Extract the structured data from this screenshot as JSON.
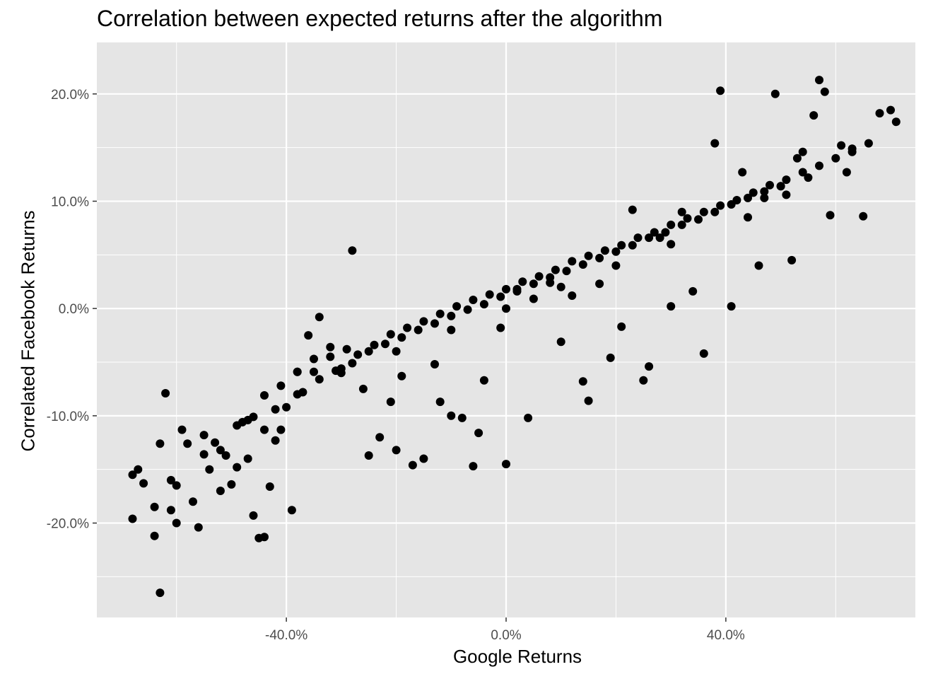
{
  "chart_data": {
    "type": "scatter",
    "title": "Correlation between expected returns after the algorithm",
    "xlabel": "Google Returns",
    "ylabel": "Correlated Facebook Returns",
    "xlim": [
      -0.745,
      0.745
    ],
    "ylim": [
      -0.288,
      0.248
    ],
    "x_ticks": [
      {
        "value": -0.4,
        "label": "-40.0%"
      },
      {
        "value": 0.0,
        "label": "0.0%"
      },
      {
        "value": 0.4,
        "label": "40.0%"
      }
    ],
    "y_ticks": [
      {
        "value": 0.2,
        "label": "20.0%"
      },
      {
        "value": 0.1,
        "label": "10.0%"
      },
      {
        "value": 0.0,
        "label": "0.0%"
      },
      {
        "value": -0.1,
        "label": "-10.0%"
      },
      {
        "value": -0.2,
        "label": "-20.0%"
      }
    ],
    "x_minor_breaks": [
      -0.6,
      -0.2,
      0.2,
      0.6
    ],
    "y_minor_breaks": [
      -0.25,
      -0.15,
      -0.05,
      0.05,
      0.15
    ],
    "grid": true,
    "point_color": "#000000",
    "panel_background": "#e5e5e5",
    "grid_color": "#ffffff",
    "series": [
      {
        "x": [
          -0.68,
          -0.68,
          -0.67,
          -0.66,
          -0.64,
          -0.63,
          -0.63,
          -0.62,
          -0.61,
          -0.6,
          -0.6,
          -0.59,
          -0.57,
          -0.56,
          -0.55,
          -0.54,
          -0.53,
          -0.52,
          -0.51,
          -0.49,
          -0.48,
          -0.47,
          -0.46,
          -0.45,
          -0.44,
          -0.43,
          -0.42,
          -0.41,
          -0.39,
          -0.38,
          -0.38,
          -0.36,
          -0.35,
          -0.34,
          -0.32,
          -0.29,
          -0.28,
          -0.26,
          -0.25,
          -0.23,
          -0.21,
          -0.2,
          -0.19,
          -0.17,
          -0.15,
          -0.13,
          -0.12,
          -0.1,
          -0.08,
          -0.06,
          -0.05,
          -0.04,
          -0.01,
          0.0,
          0.02,
          0.04,
          0.05,
          0.08,
          0.1,
          0.12,
          0.14,
          0.15,
          0.17,
          0.19,
          0.21,
          0.23,
          0.25,
          0.26,
          0.28,
          0.3,
          0.32,
          0.34,
          0.36,
          0.38,
          0.39,
          0.41,
          0.43,
          0.44,
          0.46,
          0.47,
          0.49,
          0.5,
          0.51,
          0.52,
          0.53,
          0.54,
          0.55,
          0.56,
          0.57,
          0.58,
          0.59,
          0.61,
          0.62,
          0.63,
          0.65,
          0.66,
          0.68,
          0.7,
          0.71,
          -0.64,
          -0.61,
          -0.58,
          -0.55,
          -0.52,
          -0.49,
          -0.46,
          -0.44,
          -0.41,
          -0.38,
          -0.35,
          -0.32,
          -0.3,
          -0.27,
          -0.24,
          -0.21,
          -0.18,
          -0.15,
          -0.12,
          -0.09,
          -0.06,
          -0.03,
          0.0,
          0.03,
          0.06,
          0.09,
          0.12,
          0.15,
          0.18,
          0.21,
          0.24,
          0.27,
          0.3,
          0.33,
          0.36,
          0.39,
          0.42,
          0.45,
          0.48,
          0.51,
          0.54,
          0.57,
          0.6,
          0.63,
          -0.5,
          -0.47,
          -0.44,
          -0.42,
          -0.4,
          -0.37,
          -0.34,
          -0.31,
          -0.28,
          -0.25,
          -0.22,
          -0.19,
          -0.16,
          -0.13,
          -0.1,
          -0.07,
          -0.04,
          -0.01,
          0.02,
          0.05,
          0.08,
          0.11,
          0.14,
          0.17,
          0.2,
          0.23,
          0.26,
          0.29,
          0.32,
          0.35,
          0.38,
          0.41,
          0.44,
          0.47,
          0.5,
          -0.3,
          -0.2,
          -0.1,
          0.0,
          0.1,
          0.2,
          0.3
        ],
        "y": [
          -0.155,
          -0.196,
          -0.15,
          -0.163,
          -0.185,
          -0.126,
          -0.265,
          -0.079,
          -0.188,
          -0.165,
          -0.2,
          -0.113,
          -0.18,
          -0.204,
          -0.118,
          -0.15,
          -0.125,
          -0.17,
          -0.137,
          -0.148,
          -0.106,
          -0.104,
          -0.193,
          -0.214,
          -0.213,
          -0.166,
          -0.123,
          -0.113,
          -0.188,
          -0.08,
          -0.059,
          -0.025,
          -0.047,
          -0.008,
          -0.036,
          -0.038,
          0.054,
          -0.075,
          -0.137,
          -0.12,
          -0.087,
          -0.132,
          -0.063,
          -0.146,
          -0.14,
          -0.052,
          -0.087,
          -0.1,
          -0.102,
          -0.147,
          -0.116,
          -0.067,
          -0.018,
          -0.145,
          0.018,
          -0.102,
          0.009,
          0.024,
          -0.031,
          0.012,
          -0.068,
          -0.086,
          0.023,
          -0.046,
          -0.017,
          0.092,
          -0.067,
          -0.054,
          0.066,
          0.002,
          0.09,
          0.016,
          -0.042,
          0.154,
          0.203,
          0.002,
          0.127,
          0.085,
          0.04,
          0.103,
          0.2,
          0.114,
          0.106,
          0.045,
          0.14,
          0.146,
          0.122,
          0.18,
          0.213,
          0.202,
          0.087,
          0.152,
          0.127,
          0.149,
          0.086,
          0.154,
          0.182,
          0.185,
          0.174,
          -0.212,
          -0.16,
          -0.126,
          -0.136,
          -0.132,
          -0.109,
          -0.101,
          -0.081,
          -0.072,
          -0.059,
          -0.059,
          -0.045,
          -0.056,
          -0.043,
          -0.034,
          -0.024,
          -0.018,
          -0.012,
          -0.005,
          0.002,
          0.008,
          0.013,
          0.018,
          0.025,
          0.03,
          0.036,
          0.044,
          0.049,
          0.054,
          0.059,
          0.066,
          0.071,
          0.078,
          0.084,
          0.09,
          0.096,
          0.101,
          0.108,
          0.115,
          0.12,
          0.127,
          0.133,
          0.14,
          0.146,
          -0.164,
          -0.14,
          -0.113,
          -0.094,
          -0.092,
          -0.078,
          -0.066,
          -0.058,
          -0.051,
          -0.04,
          -0.033,
          -0.027,
          -0.02,
          -0.014,
          -0.007,
          -0.001,
          0.004,
          0.011,
          0.016,
          0.023,
          0.029,
          0.035,
          0.041,
          0.047,
          0.053,
          0.059,
          0.066,
          0.071,
          0.078,
          0.083,
          0.09,
          0.097,
          0.103,
          0.109,
          0.114,
          -0.06,
          -0.04,
          -0.02,
          0.0,
          0.02,
          0.04,
          0.06
        ]
      }
    ]
  }
}
